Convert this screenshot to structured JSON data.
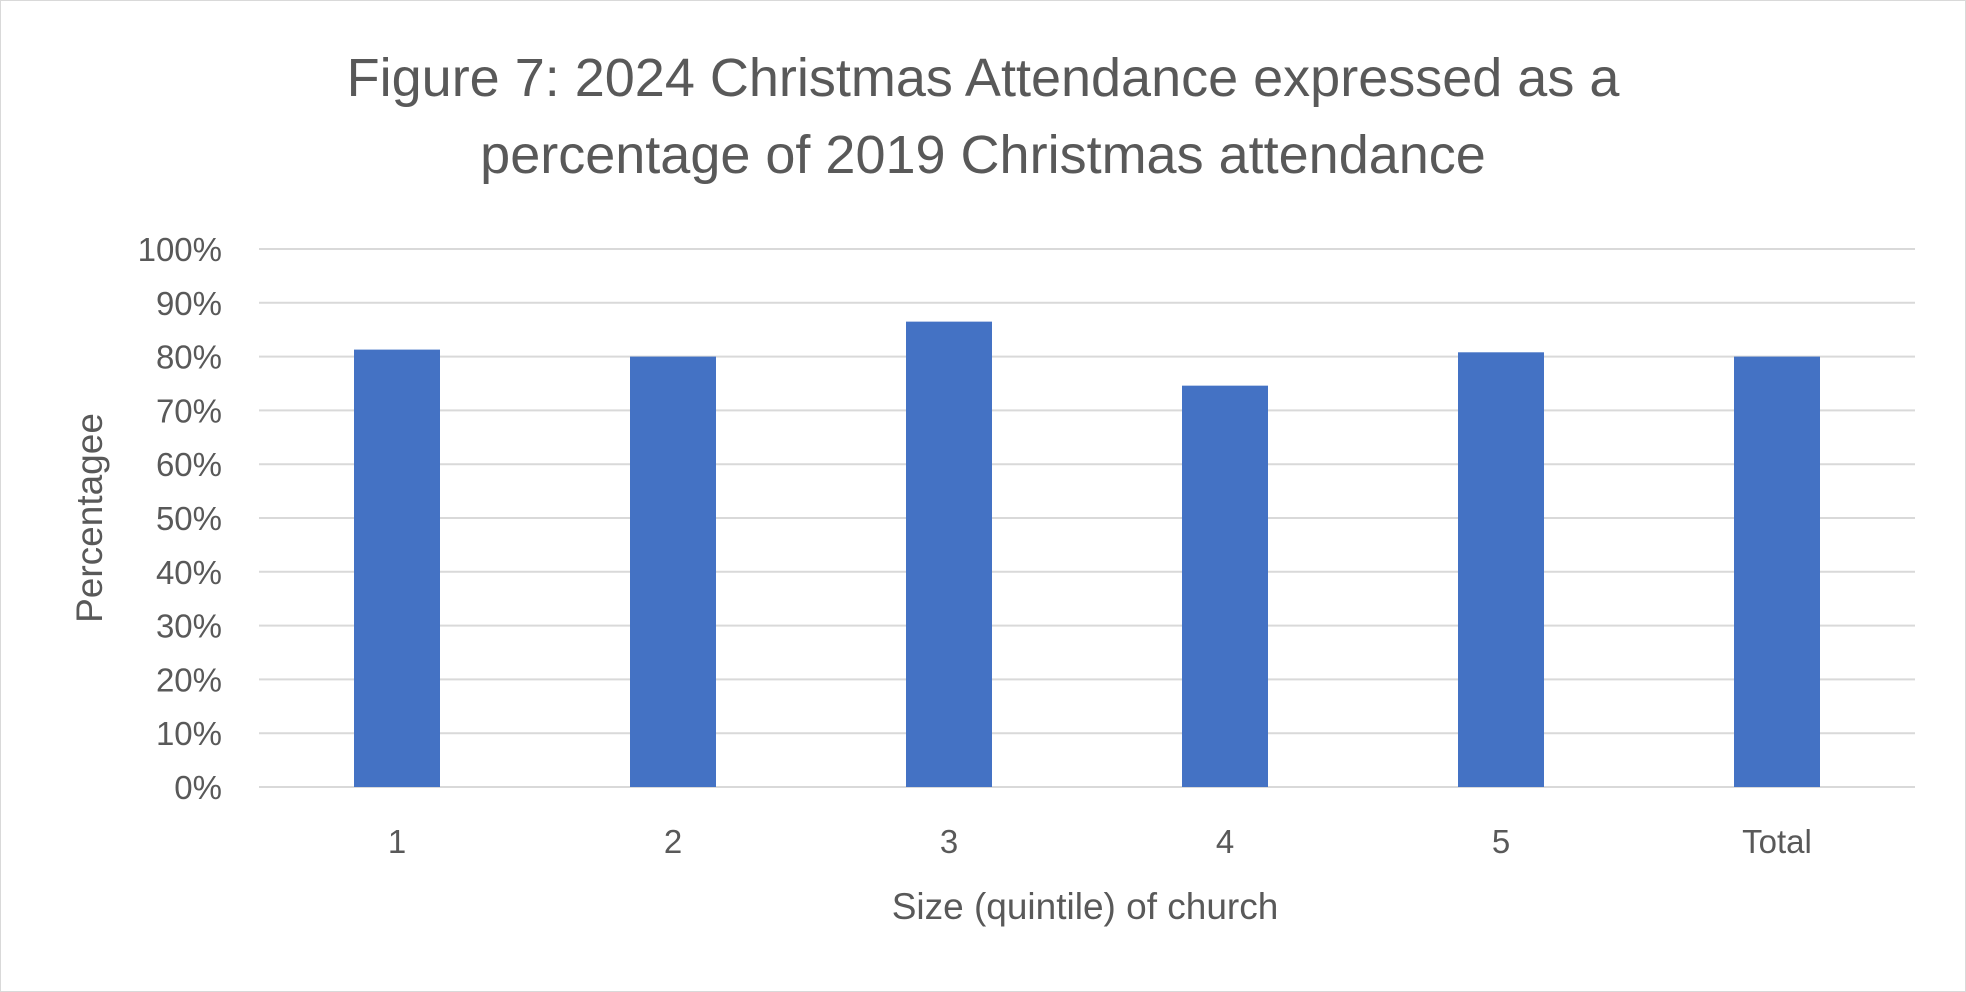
{
  "chart_data": {
    "type": "bar",
    "title_lines": [
      "Figure 7: 2024 Christmas Attendance expressed as a",
      "percentage of 2019 Christmas attendance"
    ],
    "xlabel": "Size (quintile)  of church",
    "ylabel": "Percentagee",
    "categories": [
      "1",
      "2",
      "3",
      "4",
      "5",
      "Total"
    ],
    "values": [
      81.3,
      80.0,
      86.5,
      74.6,
      80.8,
      80.0
    ],
    "value_unit": "%",
    "ylim": [
      0,
      100
    ],
    "yticks": [
      0,
      10,
      20,
      30,
      40,
      50,
      60,
      70,
      80,
      90,
      100
    ],
    "ytick_labels": [
      "0%",
      "10%",
      "20%",
      "30%",
      "40%",
      "50%",
      "60%",
      "70%",
      "80%",
      "90%",
      "100%"
    ],
    "grid": true,
    "legend": "none",
    "bar_color": "#4472c4"
  }
}
